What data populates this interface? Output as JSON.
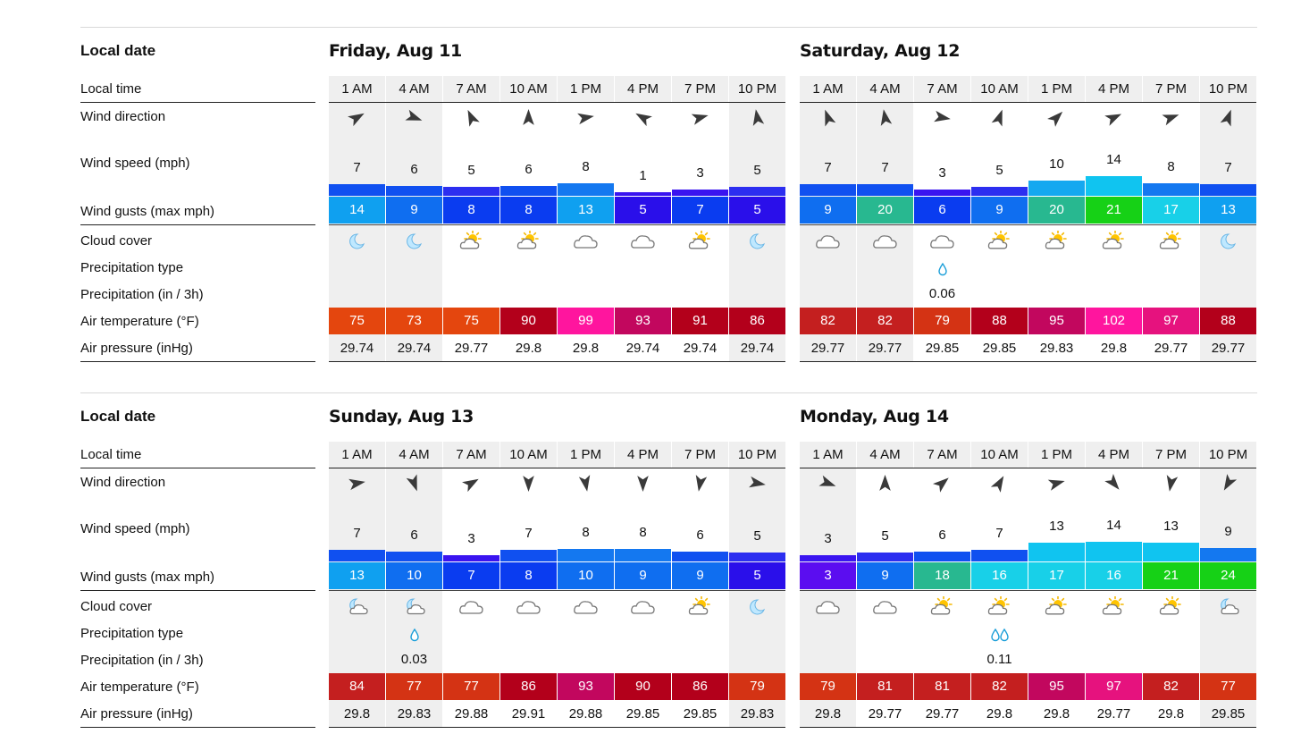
{
  "labels": {
    "local_date": "Local date",
    "local_time": "Local time",
    "wind_direction": "Wind direction",
    "wind_speed": "Wind speed (mph)",
    "wind_gusts": "Wind gusts (max mph)",
    "cloud_cover": "Cloud cover",
    "precip_type": "Precipitation type",
    "precip_amount": "Precipitation (in / 3h)",
    "air_temp": "Air temperature (°F)",
    "air_pressure": "Air pressure (inHg)"
  },
  "times": [
    "1 AM",
    "4 AM",
    "7 AM",
    "10 AM",
    "1 PM",
    "4 PM",
    "7 PM",
    "10 PM"
  ],
  "days": [
    {
      "title": "Friday, Aug 11",
      "shaded": [
        true,
        true,
        false,
        false,
        false,
        false,
        false,
        true
      ],
      "wind_dir_deg": [
        60,
        110,
        335,
        0,
        80,
        300,
        75,
        350
      ],
      "wind_speed": [
        7,
        6,
        5,
        6,
        8,
        1,
        3,
        5
      ],
      "wind_gusts": [
        14,
        9,
        8,
        8,
        13,
        5,
        7,
        5
      ],
      "cloud": [
        "moon",
        "moon",
        "sun-cloud",
        "sun-cloud",
        "cloud",
        "cloud",
        "sun-cloud",
        "moon"
      ],
      "precip_drops": [
        0,
        0,
        0,
        0,
        0,
        0,
        0,
        0
      ],
      "precip_amount": [
        "",
        "",
        "",
        "",
        "",
        "",
        "",
        ""
      ],
      "air_temp": [
        75,
        73,
        75,
        90,
        99,
        93,
        91,
        86
      ],
      "air_pressure": [
        "29.74",
        "29.74",
        "29.77",
        "29.8",
        "29.8",
        "29.74",
        "29.74",
        "29.74"
      ]
    },
    {
      "title": "Saturday, Aug 12",
      "shaded": [
        true,
        true,
        false,
        false,
        false,
        false,
        false,
        true
      ],
      "wind_dir_deg": [
        340,
        350,
        100,
        20,
        45,
        65,
        70,
        20
      ],
      "wind_speed": [
        7,
        7,
        3,
        5,
        10,
        14,
        8,
        7
      ],
      "wind_gusts": [
        9,
        20,
        6,
        9,
        20,
        21,
        17,
        13
      ],
      "cloud": [
        "cloud",
        "cloud",
        "cloud",
        "sun-cloud",
        "sun-cloud",
        "sun-cloud",
        "sun-cloud",
        "moon"
      ],
      "precip_drops": [
        0,
        0,
        1,
        0,
        0,
        0,
        0,
        0
      ],
      "precip_amount": [
        "",
        "",
        "0.06",
        "",
        "",
        "",
        "",
        ""
      ],
      "air_temp": [
        82,
        82,
        79,
        88,
        95,
        102,
        97,
        88
      ],
      "air_pressure": [
        "29.77",
        "29.77",
        "29.85",
        "29.85",
        "29.83",
        "29.8",
        "29.77",
        "29.77"
      ]
    },
    {
      "title": "Sunday, Aug 13",
      "shaded": [
        true,
        true,
        false,
        false,
        false,
        false,
        false,
        true
      ],
      "wind_dir_deg": [
        80,
        160,
        60,
        180,
        170,
        180,
        190,
        100
      ],
      "wind_speed": [
        7,
        6,
        3,
        7,
        8,
        8,
        6,
        5
      ],
      "wind_gusts": [
        13,
        10,
        7,
        8,
        10,
        9,
        9,
        5
      ],
      "cloud": [
        "moon-cloud",
        "moon-cloud",
        "cloud",
        "cloud",
        "cloud",
        "cloud",
        "sun-cloud",
        "moon"
      ],
      "precip_drops": [
        0,
        1,
        0,
        0,
        0,
        0,
        0,
        0
      ],
      "precip_amount": [
        "",
        "0.03",
        "",
        "",
        "",
        "",
        "",
        ""
      ],
      "air_temp": [
        84,
        77,
        77,
        86,
        93,
        90,
        86,
        79
      ],
      "air_pressure": [
        "29.8",
        "29.83",
        "29.88",
        "29.91",
        "29.88",
        "29.85",
        "29.85",
        "29.83"
      ]
    },
    {
      "title": "Monday, Aug 14",
      "shaded": [
        true,
        false,
        false,
        false,
        false,
        false,
        false,
        true
      ],
      "wind_dir_deg": [
        110,
        0,
        50,
        30,
        75,
        140,
        190,
        210
      ],
      "wind_speed": [
        3,
        5,
        6,
        7,
        13,
        14,
        13,
        9
      ],
      "wind_gusts": [
        3,
        9,
        18,
        16,
        17,
        16,
        21,
        24
      ],
      "cloud": [
        "cloud",
        "cloud",
        "sun-cloud",
        "sun-cloud",
        "sun-cloud",
        "sun-cloud",
        "sun-cloud",
        "moon-cloud"
      ],
      "precip_drops": [
        0,
        0,
        0,
        2,
        0,
        0,
        0,
        0
      ],
      "precip_amount": [
        "",
        "",
        "",
        "0.11",
        "",
        "",
        "",
        ""
      ],
      "air_temp": [
        79,
        81,
        81,
        82,
        95,
        97,
        82,
        77
      ],
      "air_pressure": [
        "29.8",
        "29.77",
        "29.77",
        "29.8",
        "29.8",
        "29.77",
        "29.8",
        "29.85"
      ]
    }
  ],
  "colors": {
    "gust_scale": [
      "#5b0df0",
      "#2a0fea",
      "#0a3cf0",
      "#0f6ef0",
      "#0fa0f0",
      "#18d0e8",
      "#28b890",
      "#16d116"
    ],
    "temp_scale": [
      "#e4460e",
      "#d43314",
      "#c41f1f",
      "#b3001b",
      "#c2075e",
      "#e6127e",
      "#ff159e"
    ],
    "speed_bar": [
      "#3a14f0",
      "#2c2ef0",
      "#1050f0",
      "#1478f0",
      "#14a8f0",
      "#10c4f0"
    ],
    "shade": "#efefef"
  }
}
